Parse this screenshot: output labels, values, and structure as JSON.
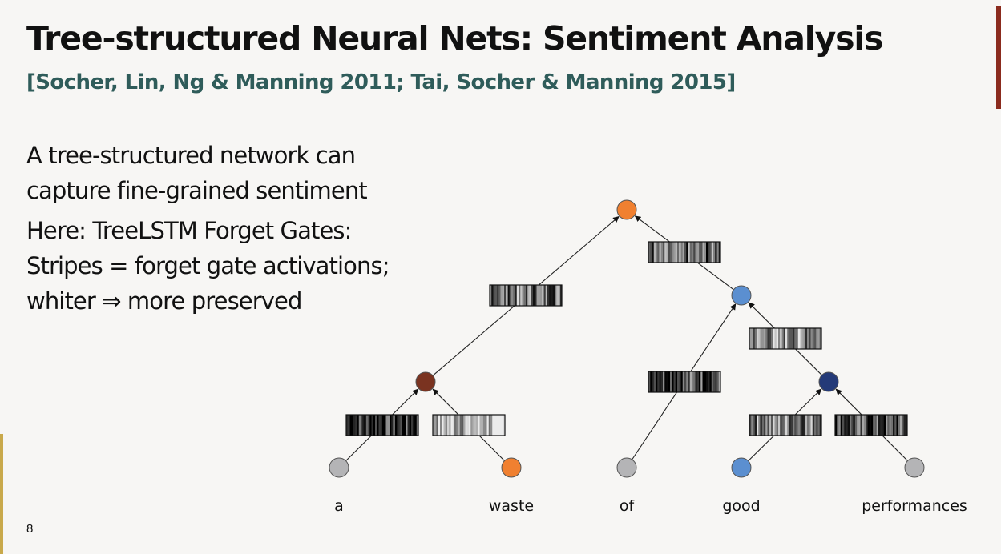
{
  "slide": {
    "title": "Tree-structured Neural Nets: Sentiment Analysis",
    "subtitle": "[Socher, Lin, Ng & Manning 2011; Tai, Socher & Manning 2015]",
    "body": [
      [
        "A tree-structured network can",
        "capture fine-grained sentiment"
      ],
      [
        "Here: TreeLSTM Forget Gates:",
        "Stripes = forget gate activations;",
        "whiter ⇒ more preserved"
      ]
    ],
    "page_number": "8"
  },
  "tree": {
    "colors": {
      "orange": "#f08030",
      "brown": "#7a3320",
      "light_blue": "#5b8fd0",
      "dark_blue": "#243a78",
      "gray": "#b4b4b6"
    },
    "nodes": [
      {
        "id": "root",
        "color": "orange"
      },
      {
        "id": "n_a_waste",
        "color": "brown"
      },
      {
        "id": "n_of_good_perf",
        "color": "light_blue"
      },
      {
        "id": "n_good_perf",
        "color": "dark_blue"
      },
      {
        "id": "leaf_a",
        "color": "gray",
        "word": "a"
      },
      {
        "id": "leaf_waste",
        "color": "orange",
        "word": "waste"
      },
      {
        "id": "leaf_of",
        "color": "gray",
        "word": "of"
      },
      {
        "id": "leaf_good",
        "color": "light_blue",
        "word": "good"
      },
      {
        "id": "leaf_performances",
        "color": "gray",
        "word": "performances"
      }
    ],
    "edges": [
      {
        "from": "leaf_a",
        "to": "n_a_waste",
        "gate_whiteness": 0.2
      },
      {
        "from": "leaf_waste",
        "to": "n_a_waste",
        "gate_whiteness": 0.8
      },
      {
        "from": "n_a_waste",
        "to": "root",
        "gate_whiteness": 0.5
      },
      {
        "from": "leaf_of",
        "to": "n_of_good_perf",
        "gate_whiteness": 0.35
      },
      {
        "from": "n_of_good_perf",
        "to": "root",
        "gate_whiteness": 0.4
      },
      {
        "from": "leaf_good",
        "to": "n_good_perf",
        "gate_whiteness": 0.55
      },
      {
        "from": "leaf_performances",
        "to": "n_good_perf",
        "gate_whiteness": 0.3
      },
      {
        "from": "n_good_perf",
        "to": "n_of_good_perf",
        "gate_whiteness": 0.6
      }
    ]
  }
}
